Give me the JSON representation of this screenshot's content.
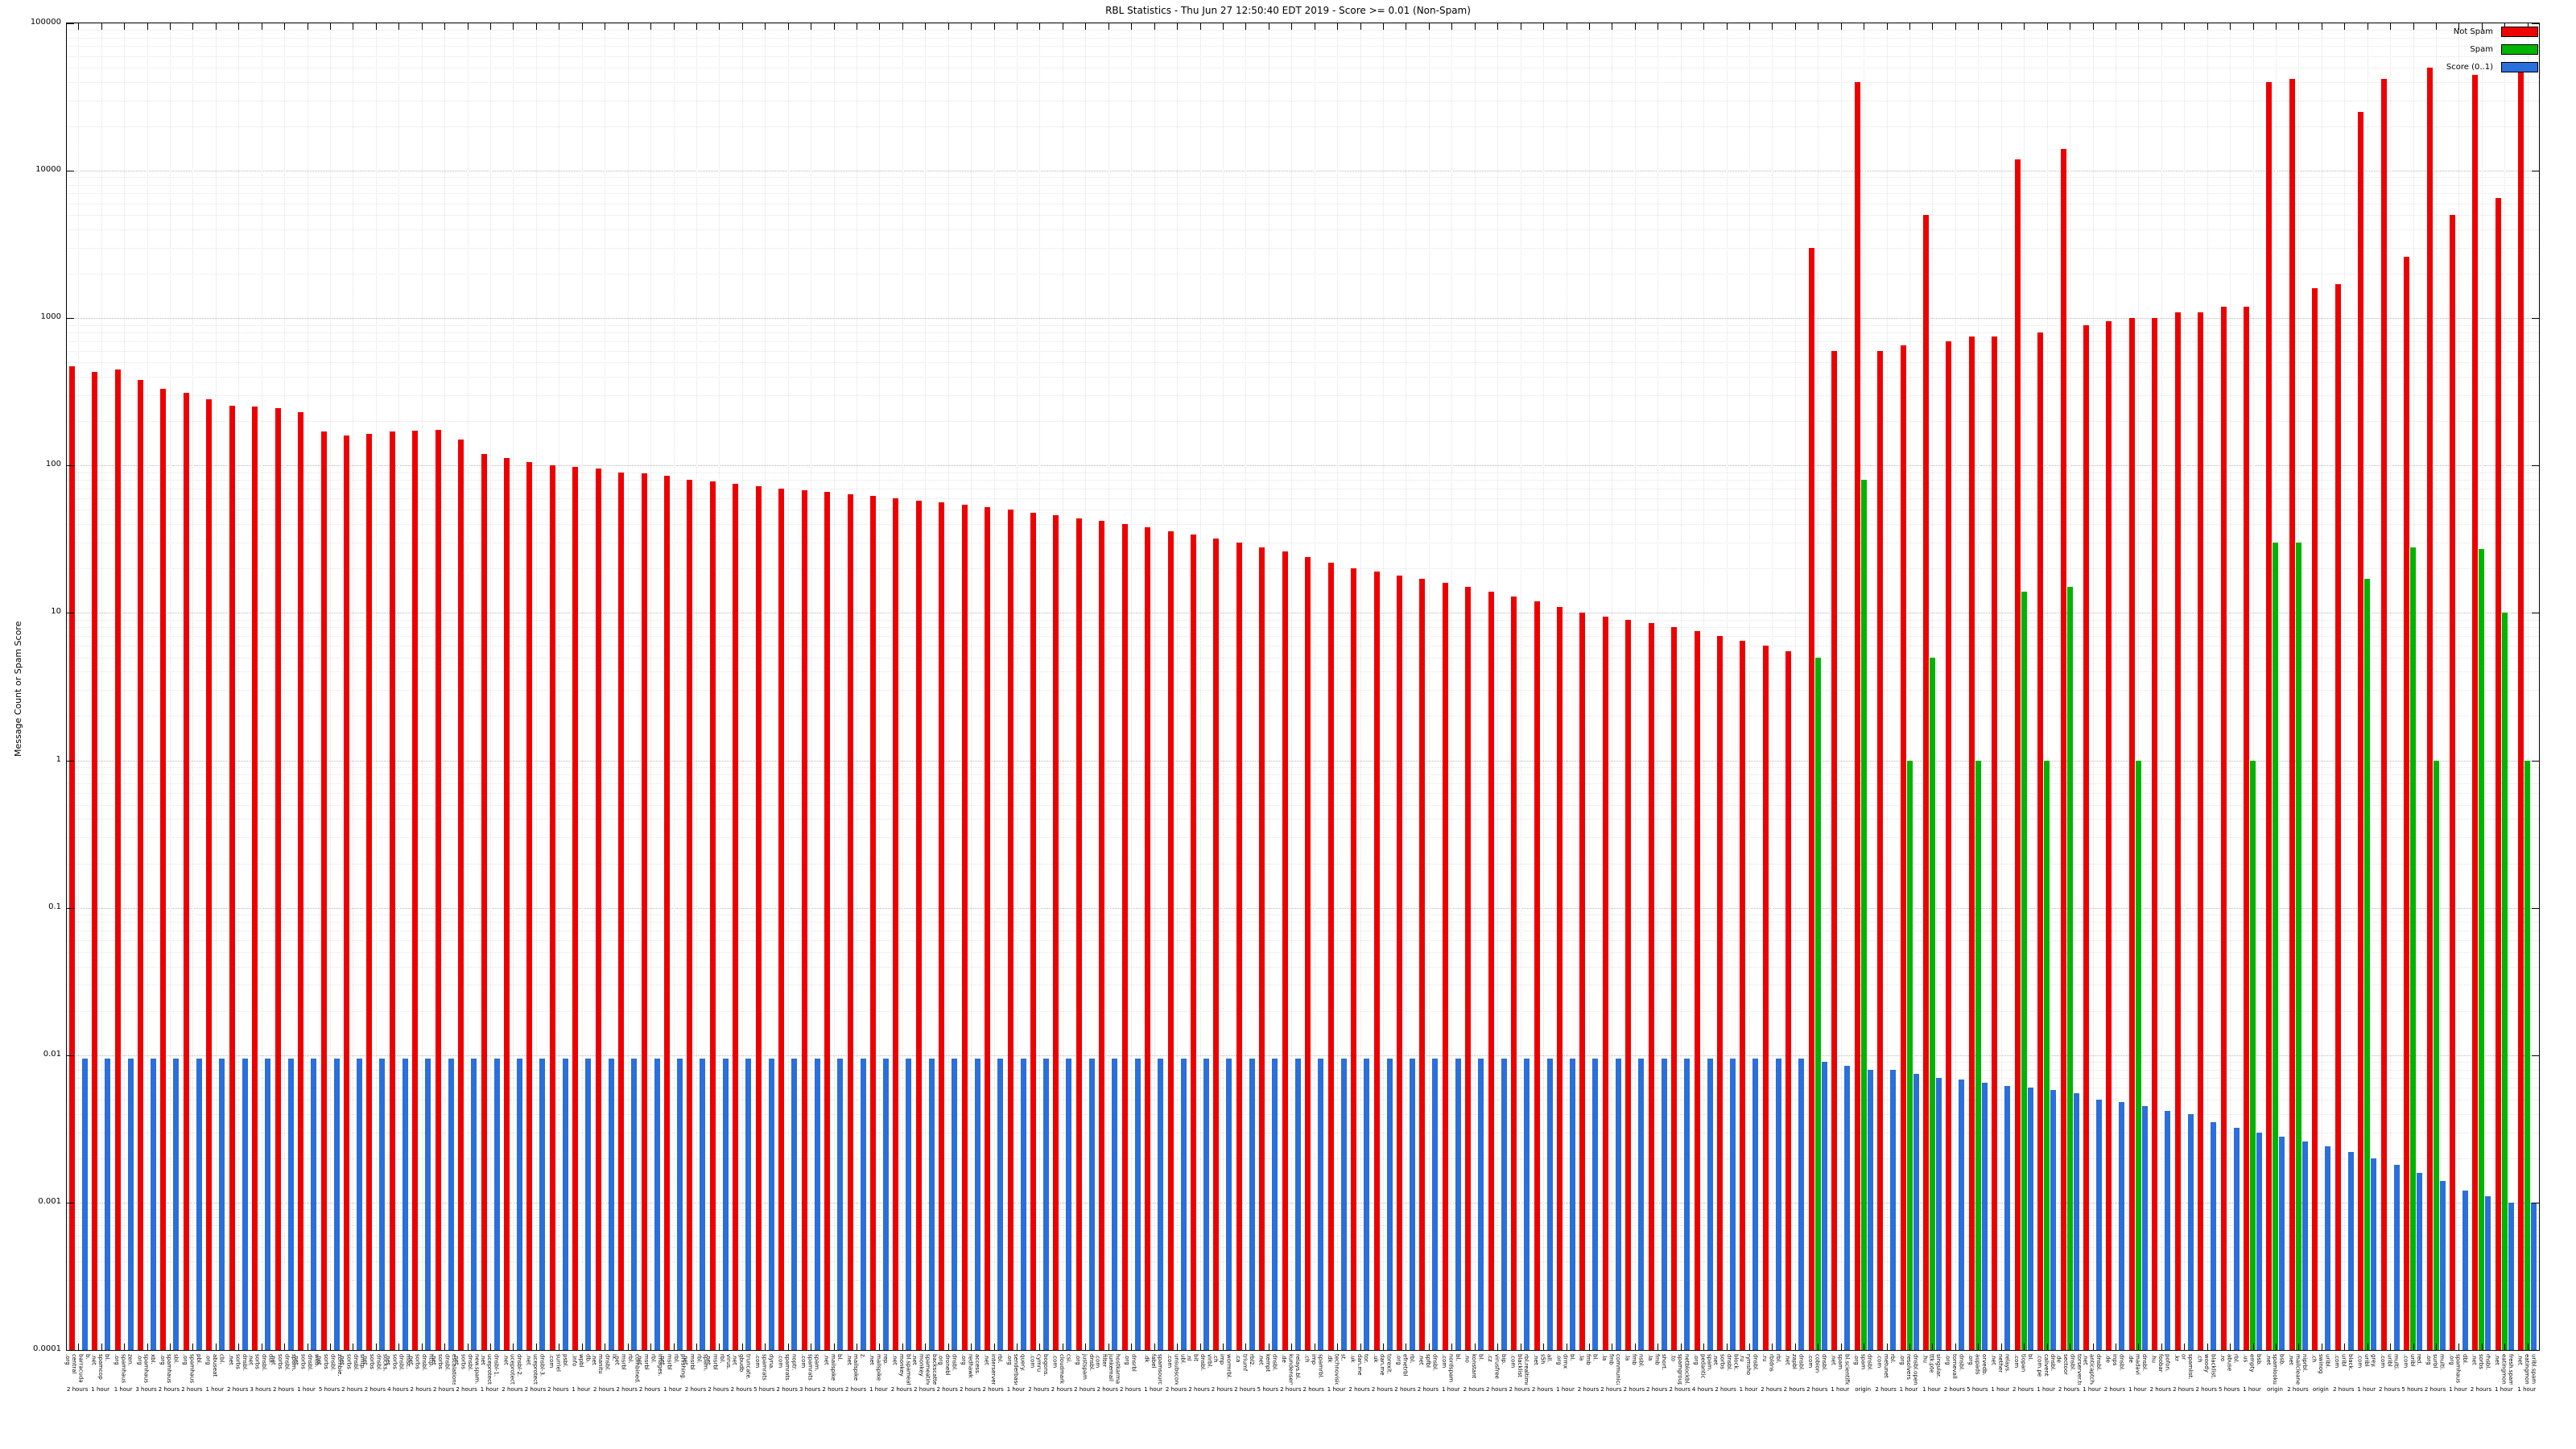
{
  "chart_data": {
    "type": "bar",
    "title": "RBL Statistics - Thu Jun 27 12:50:40 EDT 2019 - Score >= 0.01 (Non-Spam)",
    "ylabel": "Message Count or Spam Score",
    "xlabel": "",
    "yscale": "log",
    "ylim": [
      0.0001,
      100000
    ],
    "grid": true,
    "legend_position": "top-right",
    "ytick_labels": [
      "0.0001",
      "0.001",
      "0.01",
      "0.1",
      "1",
      "10",
      "100",
      "1000",
      "10000",
      "100000"
    ],
    "legend": [
      {
        "key": "not_spam",
        "name": "Not Spam",
        "color": "#ee0000"
      },
      {
        "key": "spam",
        "name": "Spam",
        "color": "#00b400"
      },
      {
        "key": "score",
        "name": "Score (0..1)",
        "color": "#2a6fdb"
      }
    ],
    "categories": [
      {
        "label": "b.\nbarracuda\ncentral\n.org",
        "duration": "2 hours"
      },
      {
        "label": "bl.\nspamcop\n.net",
        "duration": "1 hour"
      },
      {
        "label": "zen.\nspamhaus\n.org",
        "duration": "1 hour"
      },
      {
        "label": "xbl.\nspamhaus\n.org",
        "duration": "3 hours"
      },
      {
        "label": "sbl.\nspamhaus\n.org",
        "duration": "2 hours"
      },
      {
        "label": "pbl.\nspamhaus\n.org",
        "duration": "2 hours"
      },
      {
        "label": "cbl.\nabuseat\n.org",
        "duration": "1 hour"
      },
      {
        "label": "dnsbl.\nsorbs\n.net",
        "duration": "2 hours"
      },
      {
        "label": "dul.\ndnsbl.\nsorbs\n.net",
        "duration": "3 hours"
      },
      {
        "label": "spam.\ndnsbl.\nsorbs\n.net",
        "duration": "2 hours"
      },
      {
        "label": "web.\ndnsbl.\nsorbs\n.net",
        "duration": "1 hour"
      },
      {
        "label": "zombie.\ndnsbl.\nsorbs\n.net",
        "duration": "5 hours"
      },
      {
        "label": "smtp.\ndnsbl.\nsorbs\n.net",
        "duration": "2 hours"
      },
      {
        "label": "socks.\ndnsbl.\nsorbs\n.net",
        "duration": "2 hours"
      },
      {
        "label": "misc.\ndnsbl.\nsorbs\n.net",
        "duration": "4 hours"
      },
      {
        "label": "http.\ndnsbl.\nsorbs\n.net",
        "duration": "2 hours"
      },
      {
        "label": "escalations.\ndnsbl.\nsorbs\n.net",
        "duration": "2 hours"
      },
      {
        "label": "new.spam.\ndnsbl.\nsorbs\n.net",
        "duration": "2 hours"
      },
      {
        "label": "dnsbl-1.\nuceprotect\n.net",
        "duration": "1 hour"
      },
      {
        "label": "dnsbl-2.\nuceprotect\n.net",
        "duration": "2 hours"
      },
      {
        "label": "dnsbl-3.\nuceprotect\n.net",
        "duration": "2 hours"
      },
      {
        "label": "psbl.\nsurriel\n.com",
        "duration": "2 hours"
      },
      {
        "label": "db.\nwpbl\n.info",
        "duration": "1 hour"
      },
      {
        "label": "ix.\ndnsbl.\nmanitu\n.net",
        "duration": "2 hours"
      },
      {
        "label": "combined.\nrbl.\nmsrbl\n.net",
        "duration": "2 hours"
      },
      {
        "label": "images.\nrbl.\nmsrbl\n.net",
        "duration": "2 hours"
      },
      {
        "label": "phishing.\nrbl.\nmsrbl\n.net",
        "duration": "1 hour"
      },
      {
        "label": "spam.\nrbl.\nmsrbl\n.net",
        "duration": "2 hours"
      },
      {
        "label": "virus.\nrbl.\nmsrbl\n.net",
        "duration": "2 hours"
      },
      {
        "label": "truncate.\ngbudb\n.net",
        "duration": "2 hours"
      },
      {
        "label": "dyna.\nspamrats\n.com",
        "duration": "5 hours"
      },
      {
        "label": "noptr.\nspamrats\n.com",
        "duration": "2 hours"
      },
      {
        "label": "spam.\nspamrats\n.com",
        "duration": "3 hours"
      },
      {
        "label": "bl.\nmailspike\n.net",
        "duration": "2 hours"
      },
      {
        "label": "z.\nmailspike\n.net",
        "duration": "2 hours"
      },
      {
        "label": "rep.\nmailspike\n.net",
        "duration": "1 hour"
      },
      {
        "label": "bl.spameating\nmonkey\n.net",
        "duration": "2 hours"
      },
      {
        "label": "backscatter.\nspameating\nmonkey\n.net",
        "duration": "2 hours"
      },
      {
        "label": "dnsbl.\ndronebl\n.org",
        "duration": "2 hours"
      },
      {
        "label": "access.\nredhawk\n.org",
        "duration": "2 hours"
      },
      {
        "label": "rbl.\ninterserver\n.net",
        "duration": "2 hours"
      },
      {
        "label": "query.\nsenderbase\n.org",
        "duration": "1 hour"
      },
      {
        "label": "bogons.\ncymru\n.com",
        "duration": "2 hours"
      },
      {
        "label": "csi.\ncloudmark\n.com",
        "duration": "2 hours"
      },
      {
        "label": "dnsbl.\njustspam\n.org",
        "duration": "2 hours"
      },
      {
        "label": "hostkarma.\njunkemail\nfilter\n.com",
        "duration": "2 hours"
      },
      {
        "label": "dnsrbl\n.org",
        "duration": "2 hours"
      },
      {
        "label": "spamsources.\nfabel\n.dk",
        "duration": "1 hour"
      },
      {
        "label": "ubl.\nunsubscore\n.com",
        "duration": "2 hours"
      },
      {
        "label": "virbl.\ndnsbl.\nbit\n.nl",
        "duration": "2 hours"
      },
      {
        "label": "wormrbl.\nimp\n.ch",
        "duration": "2 hours"
      },
      {
        "label": "rbl2.\ntriumf\n.ca",
        "duration": "2 hours"
      },
      {
        "label": "dnsbl.\nkempt\n.net",
        "duration": "5 hours"
      },
      {
        "label": "relays.bl.\nkundenserver\n.de",
        "duration": "2 hours"
      },
      {
        "label": "spamrbl.\nimp\n.ch",
        "duration": "2 hours"
      },
      {
        "label": "st.\ntechnovision\n.dk",
        "duration": "1 hour"
      },
      {
        "label": "tor.\ndan.me\n.uk",
        "duration": "2 hours"
      },
      {
        "label": "torexit.\ndan.me\n.uk",
        "duration": "2 hours"
      },
      {
        "label": "rbl.\nefnetrbl\n.org",
        "duration": "2 hours"
      },
      {
        "label": "dnsbl.\nspfbl\n.net",
        "duration": "2 hours"
      },
      {
        "label": "bl.\nnordspam\n.com",
        "duration": "1 hour"
      },
      {
        "label": "bl.\nkonstant\n.no",
        "duration": "2 hours"
      },
      {
        "label": "bip.\nvirusfree\n.cz",
        "duration": "2 hours"
      },
      {
        "label": "rbl.realtime\nblacklist\n.com",
        "duration": "2 hours"
      },
      {
        "label": "all.\ns5h\n.net",
        "duration": "2 hours"
      },
      {
        "label": "bl.\ndrmx\n.org",
        "duration": "1 hour"
      },
      {
        "label": "bl.\nfmb\n.la",
        "duration": "2 hours"
      },
      {
        "label": "communicado.\nfmb\n.la",
        "duration": "2 hours"
      },
      {
        "label": "nsbl.\nfmb\n.la",
        "duration": "2 hours"
      },
      {
        "label": "short.\nfmb\n.la",
        "duration": "2 hours"
      },
      {
        "label": "netblockbl.\nspamgrouper\n.to",
        "duration": "2 hours"
      },
      {
        "label": "spam.\npedantic\n.org",
        "duration": "4 hours"
      },
      {
        "label": "block.\ndnsbl.\nsorbs\n.net",
        "duration": "2 hours"
      },
      {
        "label": "dnsbl.\nrymsho\n.ru",
        "duration": "1 hour"
      },
      {
        "label": "rbl.\nrbldns\n.ru",
        "duration": "2 hours"
      },
      {
        "label": "dnsbl.\nzapbl\n.net",
        "duration": "2 hours"
      },
      {
        "label": "dnsbl.\ncobion\n.com",
        "duration": "2 hours"
      },
      {
        "label": "bl.scientific\nspam\n.net",
        "duration": "1 hour"
      },
      {
        "label": "dnsbl.\nspam\n.org",
        "duration": "origin"
      },
      {
        "label": "rbl.\nmetunet\n.com",
        "duration": "2 hours"
      },
      {
        "label": "dnsbl.open\nresolvers\n.org",
        "duration": "1 hour"
      },
      {
        "label": "singular.\nttk.pte\n.hu",
        "duration": "1 hour"
      },
      {
        "label": "dnsbl.\ntornevall\n.org",
        "duration": "2 hours"
      },
      {
        "label": "orvedb.\naupads\n.org",
        "duration": "5 hours"
      },
      {
        "label": "relays.\nnether\n.net",
        "duration": "1 hour"
      },
      {
        "label": "bl.\ntiopan\n.com",
        "duration": "2 hours"
      },
      {
        "label": "dnsbl.\ncalivent\n.com.pe",
        "duration": "1 hour"
      },
      {
        "label": "torserver.tor.\ndnsbl.\nsectoor\n.de",
        "duration": "2 hours"
      },
      {
        "label": "dnsbl.\nanticaptcha\n.net",
        "duration": "1 hour"
      },
      {
        "label": "dnsbl.\ninps\n.de",
        "duration": "2 hours"
      },
      {
        "label": "dnsbl.\nmadavi\n.de",
        "duration": "1 hour"
      },
      {
        "label": "pofon.\nfoobar\n.hu",
        "duration": "2 hours"
      },
      {
        "label": "spamlist.\nor\n.kr",
        "duration": "2 hours"
      },
      {
        "label": "blacklist.\nwoody\n.ch",
        "duration": "2 hours"
      },
      {
        "label": "rbl.\nabuse\n.ro",
        "duration": "5 hours"
      },
      {
        "label": "bsb.\nempty\n.us",
        "duration": "1 hour"
      },
      {
        "label": "bsb.\nspamlookup\n.net",
        "duration": "origin"
      },
      {
        "label": "niprbl.\nmailcleaner\n.net",
        "duration": "2 hours"
      },
      {
        "label": "uribl.\nswinog\n.ch",
        "duration": "origin"
      },
      {
        "label": "black.\nuribl\n.com",
        "duration": "2 hours"
      },
      {
        "label": "grey.\nuribl\n.com",
        "duration": "1 hour"
      },
      {
        "label": "multi.\nuribl\n.com",
        "duration": "2 hours"
      },
      {
        "label": "red.\nuribl\n.com",
        "duration": "5 hours"
      },
      {
        "label": "multi.\nsurbl\n.org",
        "duration": "2 hours"
      },
      {
        "label": "dbl.\nspamhaus\n.org",
        "duration": "1 hour"
      },
      {
        "label": "rhsbl.\nsorbs\n.net",
        "duration": "2 hours"
      },
      {
        "label": "fresh.spam\neatingmonkey\n.net",
        "duration": "1 hour"
      },
      {
        "label": "uribl.spam\neatingmonkey\n.net",
        "duration": "1 hour"
      }
    ],
    "series": [
      {
        "key": "not_spam",
        "name": "Not Spam",
        "color": "#ee0000",
        "values": [
          470,
          430,
          450,
          380,
          330,
          310,
          280,
          255,
          250,
          245,
          230,
          170,
          160,
          165,
          170,
          172,
          175,
          150,
          120,
          112,
          105,
          100,
          98,
          95,
          90,
          88,
          85,
          80,
          78,
          75,
          72,
          70,
          68,
          66,
          64,
          62,
          60,
          58,
          56,
          54,
          52,
          50,
          48,
          46,
          44,
          42,
          40,
          38,
          36,
          34,
          32,
          30,
          28,
          26,
          24,
          22,
          20,
          19,
          18,
          17,
          16,
          15,
          14,
          13,
          12,
          11,
          10,
          9.5,
          9,
          8.5,
          8,
          7.5,
          7,
          6.5,
          6,
          5.5,
          3000,
          600,
          40000,
          600,
          650,
          5000,
          700,
          750,
          750,
          12000,
          800,
          14000,
          900,
          950,
          1000,
          1000,
          1100,
          1100,
          1200,
          1200,
          40000,
          42000,
          1600,
          1700,
          25000,
          42000,
          2600,
          50000,
          5000,
          45000,
          6500,
          48000
        ]
      },
      {
        "key": "spam",
        "name": "Spam",
        "color": "#00b400",
        "values": [
          null,
          null,
          null,
          null,
          null,
          null,
          null,
          null,
          null,
          null,
          null,
          null,
          null,
          null,
          null,
          null,
          null,
          null,
          null,
          null,
          null,
          null,
          null,
          null,
          null,
          null,
          null,
          null,
          null,
          null,
          null,
          null,
          null,
          null,
          null,
          null,
          null,
          null,
          null,
          null,
          null,
          null,
          null,
          null,
          null,
          null,
          null,
          null,
          null,
          null,
          null,
          null,
          null,
          null,
          null,
          null,
          null,
          null,
          null,
          null,
          null,
          null,
          null,
          null,
          null,
          null,
          null,
          null,
          null,
          null,
          null,
          null,
          null,
          null,
          null,
          null,
          5,
          null,
          80,
          null,
          1,
          5,
          null,
          1,
          null,
          14,
          1,
          15,
          null,
          null,
          1,
          null,
          null,
          null,
          null,
          1,
          30,
          30,
          null,
          null,
          17,
          null,
          28,
          1,
          null,
          27,
          10,
          1
        ]
      },
      {
        "key": "score",
        "name": "Score (0..1)",
        "color": "#2a6fdb",
        "values": [
          0.0095,
          0.0095,
          0.0095,
          0.0095,
          0.0095,
          0.0095,
          0.0095,
          0.0095,
          0.0095,
          0.0095,
          0.0095,
          0.0095,
          0.0095,
          0.0095,
          0.0095,
          0.0095,
          0.0095,
          0.0095,
          0.0095,
          0.0095,
          0.0095,
          0.0095,
          0.0095,
          0.0095,
          0.0095,
          0.0095,
          0.0095,
          0.0095,
          0.0095,
          0.0095,
          0.0095,
          0.0095,
          0.0095,
          0.0095,
          0.0095,
          0.0095,
          0.0095,
          0.0095,
          0.0095,
          0.0095,
          0.0095,
          0.0095,
          0.0095,
          0.0095,
          0.0095,
          0.0095,
          0.0095,
          0.0095,
          0.0095,
          0.0095,
          0.0095,
          0.0095,
          0.0095,
          0.0095,
          0.0095,
          0.0095,
          0.0095,
          0.0095,
          0.0095,
          0.0095,
          0.0095,
          0.0095,
          0.0095,
          0.0095,
          0.0095,
          0.0095,
          0.0095,
          0.0095,
          0.0095,
          0.0095,
          0.0095,
          0.0095,
          0.0095,
          0.0095,
          0.0095,
          0.0095,
          0.009,
          0.0085,
          0.008,
          0.008,
          0.0075,
          0.007,
          0.0068,
          0.0065,
          0.0062,
          0.006,
          0.0058,
          0.0055,
          0.005,
          0.0048,
          0.0045,
          0.0042,
          0.004,
          0.0035,
          0.0032,
          0.003,
          0.0028,
          0.0026,
          0.0024,
          0.0022,
          0.002,
          0.0018,
          0.0016,
          0.0014,
          0.0012,
          0.0011,
          0.001,
          0.001
        ]
      }
    ]
  }
}
